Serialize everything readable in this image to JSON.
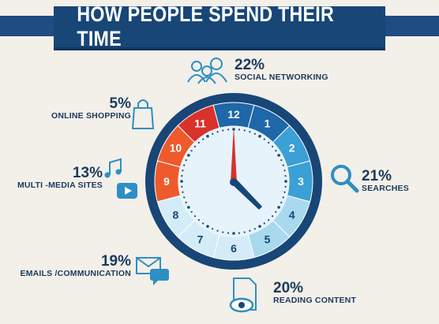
{
  "title": "HOW PEOPLE SPEND THEIR TIME",
  "colors": {
    "navy": "#184677",
    "icon_blue": "#2d8fc4",
    "red": "#d8322b",
    "orange": "#ef5a2d",
    "blue_dark": "#1e67a8",
    "blue_mid": "#3aa0d5",
    "blue_light": "#a9d9ef",
    "blue_pale": "#d4ecf7"
  },
  "stats": [
    {
      "id": "social",
      "percent": "22%",
      "label": "SOCIAL NETWORKING",
      "icon": "people-icon"
    },
    {
      "id": "shopping",
      "percent": "5%",
      "label": "ONLINE SHOPPING",
      "icon": "shopping-bag-icon"
    },
    {
      "id": "multimedia",
      "percent": "13%",
      "label": "MULTI -MEDIA SITES",
      "icon": "music-video-icon"
    },
    {
      "id": "searches",
      "percent": "21%",
      "label": "SEARCHES",
      "icon": "magnifier-icon"
    },
    {
      "id": "emails",
      "percent": "19%",
      "label": "EMAILS /COMMUNICATION",
      "icon": "envelope-chat-icon"
    },
    {
      "id": "reading",
      "percent": "20%",
      "label": "READING CONTENT",
      "icon": "document-eye-icon"
    }
  ],
  "clock": {
    "numbers": [
      "12",
      "1",
      "2",
      "3",
      "4",
      "5",
      "6",
      "7",
      "8",
      "9",
      "10",
      "11"
    ]
  }
}
